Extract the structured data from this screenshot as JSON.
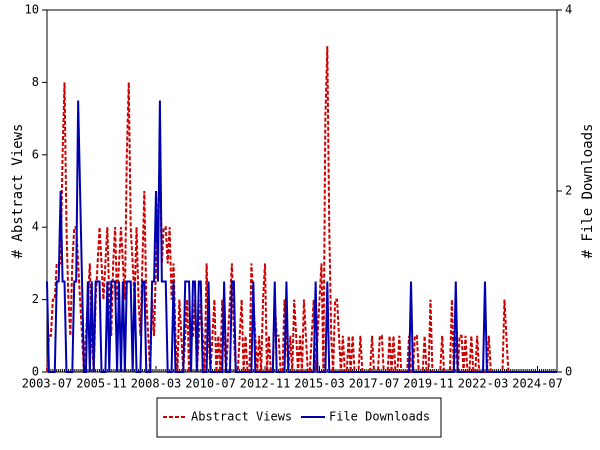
{
  "chart_data": {
    "type": "line",
    "y_label": "# Abstract Views",
    "y2_label": "# File Downloads",
    "categories": [
      "2003-07",
      null,
      null,
      null,
      null,
      null,
      null,
      null,
      null,
      null,
      null,
      null,
      null,
      null,
      null,
      null,
      null,
      null,
      null,
      null,
      null,
      null,
      null,
      null,
      null,
      null,
      null,
      null,
      "2005-11",
      null,
      null,
      null,
      null,
      null,
      null,
      null,
      null,
      null,
      null,
      null,
      null,
      null,
      null,
      null,
      null,
      null,
      null,
      null,
      null,
      null,
      null,
      null,
      null,
      null,
      null,
      null,
      "2008-03",
      null,
      null,
      null,
      null,
      null,
      null,
      null,
      null,
      null,
      null,
      null,
      null,
      null,
      null,
      null,
      null,
      null,
      null,
      null,
      null,
      null,
      null,
      null,
      null,
      null,
      null,
      null,
      "2010-07",
      null,
      null,
      null,
      null,
      null,
      null,
      null,
      null,
      null,
      null,
      null,
      null,
      null,
      null,
      null,
      null,
      null,
      null,
      null,
      null,
      null,
      null,
      null,
      null,
      null,
      null,
      null,
      "2012-11",
      null,
      null,
      null,
      null,
      null,
      null,
      null,
      null,
      null,
      null,
      null,
      null,
      null,
      null,
      null,
      null,
      null,
      null,
      null,
      null,
      null,
      null,
      null,
      null,
      null,
      null,
      null,
      "2015-03",
      null,
      null,
      null,
      null,
      null,
      null,
      null,
      null,
      null,
      null,
      null,
      null,
      null,
      null,
      null,
      null,
      null,
      null,
      null,
      null,
      null,
      null,
      null,
      null,
      null,
      null,
      null,
      "2017-07",
      null,
      null,
      null,
      null,
      null,
      null,
      null,
      null,
      null,
      null,
      null,
      null,
      null,
      null,
      null,
      null,
      null,
      null,
      null,
      null,
      null,
      null,
      null,
      null,
      null,
      null,
      null,
      "2019-11",
      null,
      null,
      null,
      null,
      null,
      null,
      null,
      null,
      null,
      null,
      null,
      null,
      null,
      null,
      null,
      null,
      null,
      null,
      null,
      null,
      null,
      null,
      null,
      null,
      null,
      null,
      null,
      "2022-03",
      null,
      null,
      null,
      null,
      null,
      null,
      null,
      null,
      null,
      null,
      null,
      null,
      null,
      null,
      null,
      null,
      null,
      null,
      null,
      null,
      null,
      null,
      null,
      null,
      null,
      null,
      null,
      "2024-07",
      null,
      null,
      null,
      null,
      null,
      null,
      null,
      null,
      null,
      null
    ],
    "series": [
      {
        "name": "Abstract Views",
        "color": "#cc0000",
        "dashed": true,
        "axis": "y",
        "values": [
          0,
          1,
          1,
          2,
          2,
          3,
          3,
          3,
          6,
          8,
          4,
          2,
          1,
          3,
          4,
          4,
          3,
          2,
          1,
          0,
          1,
          2,
          3,
          1,
          0,
          2,
          3,
          4,
          3,
          2,
          3,
          4,
          2,
          1,
          3,
          4,
          2,
          3,
          4,
          3,
          2,
          6,
          8,
          4,
          3,
          2,
          4,
          2,
          1,
          3,
          5,
          2,
          1,
          0,
          2,
          1,
          3,
          4,
          6,
          3,
          4,
          4,
          3,
          4,
          2,
          3,
          1,
          0,
          2,
          1,
          0,
          1,
          2,
          0,
          1,
          1,
          2,
          0,
          1,
          2,
          1,
          0,
          3,
          1,
          0,
          1,
          2,
          0,
          1,
          0,
          2,
          1,
          0,
          1,
          2,
          3,
          1,
          0,
          0,
          1,
          2,
          0,
          1,
          0,
          0,
          3,
          2,
          1,
          0,
          1,
          0,
          2,
          3,
          0,
          1,
          0,
          0,
          2,
          1,
          1,
          0,
          0,
          2,
          1,
          0,
          1,
          0,
          2,
          1,
          0,
          1,
          0,
          2,
          1,
          0,
          0,
          1,
          2,
          0,
          1,
          2,
          3,
          0,
          7,
          9,
          4,
          1,
          0,
          2,
          2,
          1,
          0,
          1,
          0,
          0,
          1,
          0,
          1,
          0,
          0,
          0,
          1,
          0,
          0,
          0,
          0,
          0,
          1,
          0,
          0,
          0,
          1,
          1,
          0,
          0,
          0,
          1,
          0,
          1,
          0,
          0,
          1,
          0,
          0,
          0,
          0,
          1,
          0,
          0,
          1,
          1,
          0,
          0,
          0,
          1,
          0,
          0,
          2,
          0,
          0,
          0,
          0,
          0,
          1,
          0,
          0,
          0,
          0,
          2,
          0,
          1,
          0,
          1,
          1,
          0,
          1,
          0,
          0,
          1,
          0,
          0,
          1,
          0,
          0,
          0,
          0,
          0,
          1,
          0,
          0,
          0,
          0,
          0,
          0,
          0,
          2,
          1,
          0,
          0,
          0,
          0,
          0,
          0,
          0,
          0,
          0,
          0,
          0,
          0,
          0,
          0,
          0,
          0,
          0,
          0,
          0,
          0,
          0,
          0,
          0,
          0,
          0,
          0
        ]
      },
      {
        "name": "File Downloads",
        "color": "#0000b0",
        "dashed": false,
        "axis": "y2",
        "values": [
          1,
          0,
          0,
          0,
          0,
          1,
          1,
          2,
          1,
          1,
          0,
          0,
          0,
          0,
          1,
          1,
          3,
          2,
          1,
          0,
          0,
          1,
          0,
          1,
          0,
          1,
          1,
          1,
          0,
          0,
          0,
          1,
          0,
          1,
          1,
          1,
          0,
          1,
          0,
          1,
          0,
          1,
          1,
          1,
          0,
          1,
          0,
          0,
          0,
          1,
          1,
          0,
          0,
          0,
          1,
          1,
          2,
          1,
          3,
          1,
          1,
          1,
          0,
          0,
          0,
          1,
          0,
          0,
          0,
          0,
          0,
          1,
          1,
          1,
          0,
          1,
          1,
          0,
          1,
          1,
          0,
          0,
          0,
          1,
          0,
          0,
          0,
          0,
          0,
          0,
          0,
          1,
          0,
          0,
          0,
          1,
          1,
          0,
          0,
          0,
          0,
          0,
          0,
          0,
          0,
          0,
          1,
          0,
          0,
          0,
          0,
          0,
          0,
          0,
          0,
          0,
          0,
          1,
          0,
          0,
          0,
          0,
          0,
          1,
          0,
          0,
          0,
          0,
          0,
          0,
          0,
          0,
          0,
          0,
          0,
          0,
          0,
          0,
          1,
          0,
          0,
          0,
          0,
          0,
          1,
          0,
          0,
          0,
          0,
          0,
          0,
          0,
          0,
          0,
          0,
          0,
          0,
          0,
          0,
          0,
          0,
          0,
          0,
          0,
          0,
          0,
          0,
          0,
          0,
          0,
          0,
          0,
          0,
          0,
          0,
          0,
          0,
          0,
          0,
          0,
          0,
          0,
          0,
          0,
          0,
          0,
          0,
          1,
          0,
          0,
          0,
          0,
          0,
          0,
          0,
          0,
          0,
          0,
          0,
          0,
          0,
          0,
          0,
          0,
          0,
          0,
          0,
          0,
          0,
          0,
          1,
          0,
          0,
          0,
          0,
          0,
          0,
          0,
          0,
          0,
          0,
          0,
          0,
          0,
          0,
          1,
          0,
          0,
          0,
          0,
          0,
          0,
          0,
          0,
          0,
          0,
          0,
          0,
          0,
          0,
          0,
          0,
          0,
          0,
          0,
          0,
          0,
          0,
          0,
          0,
          0,
          0,
          0,
          0,
          0,
          0,
          0,
          0,
          0,
          0,
          0,
          0,
          0
        ]
      }
    ],
    "ylim": [
      0,
      10
    ],
    "yticks": [
      0,
      2,
      4,
      6,
      8,
      10
    ],
    "y2lim": [
      0,
      4
    ],
    "y2ticks": [
      0,
      2,
      4
    ],
    "legend": "bottom"
  }
}
